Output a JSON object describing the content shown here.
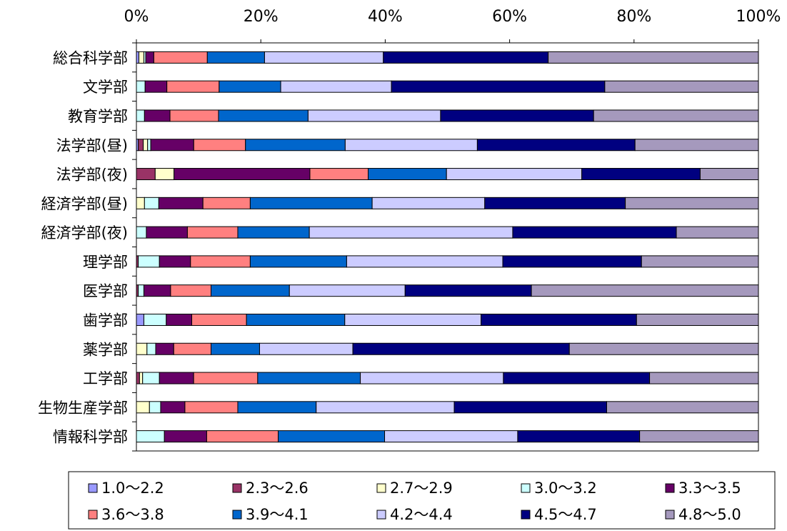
{
  "chart_data": {
    "type": "bar",
    "orientation": "horizontal",
    "stacked": "percent",
    "title": "",
    "xlabel": "",
    "ylabel": "",
    "xlim": [
      0,
      100
    ],
    "x_ticks": [
      "0%",
      "20%",
      "40%",
      "60%",
      "80%",
      "100%"
    ],
    "x_axis_position": "top",
    "grid": false,
    "legend_position": "bottom",
    "categories": [
      "総合科学部",
      "文学部",
      "教育学部",
      "法学部(昼)",
      "法学部(夜)",
      "経済学部(昼)",
      "経済学部(夜)",
      "理学部",
      "医学部",
      "歯学部",
      "薬学部",
      "工学部",
      "生物生産学部",
      "情報科学部"
    ],
    "series": [
      {
        "name": "1.0〜2.2",
        "color": "#9999ff",
        "values": [
          0.4,
          0,
          0,
          0.3,
          0,
          0,
          0,
          0,
          0,
          1.2,
          0,
          0,
          0,
          0
        ]
      },
      {
        "name": "2.3〜2.6",
        "color": "#993366",
        "values": [
          0,
          0,
          0,
          0.8,
          3.0,
          0,
          0,
          0.3,
          0.3,
          0,
          0,
          0.5,
          0,
          0
        ]
      },
      {
        "name": "2.7〜2.9",
        "color": "#ffffcc",
        "values": [
          0.8,
          0,
          0,
          0.7,
          3.0,
          1.3,
          0,
          0,
          0,
          0,
          1.7,
          0.5,
          2.1,
          0
        ]
      },
      {
        "name": "3.0〜3.2",
        "color": "#ccffff",
        "values": [
          0.3,
          1.4,
          1.3,
          0.5,
          0,
          2.3,
          1.6,
          3.4,
          0.9,
          3.6,
          1.4,
          2.7,
          1.8,
          4.5
        ]
      },
      {
        "name": "3.3〜3.5",
        "color": "#660066",
        "values": [
          1.3,
          3.5,
          4.1,
          6.9,
          21.7,
          7.1,
          6.6,
          5.0,
          4.3,
          4.1,
          2.9,
          5.5,
          3.9,
          6.8
        ]
      },
      {
        "name": "3.6〜3.8",
        "color": "#ff8080",
        "values": [
          8.6,
          8.4,
          7.8,
          8.3,
          9.3,
          7.6,
          8.1,
          9.6,
          6.5,
          8.8,
          6.0,
          10.3,
          8.5,
          11.5
        ]
      },
      {
        "name": "3.9〜4.1",
        "color": "#0066cc",
        "values": [
          9.2,
          9.9,
          14.4,
          16.0,
          12.5,
          19.6,
          11.5,
          15.5,
          12.6,
          15.8,
          7.8,
          16.5,
          12.6,
          17.1
        ]
      },
      {
        "name": "4.2〜4.4",
        "color": "#ccccff",
        "values": [
          19.1,
          17.8,
          21.3,
          21.2,
          21.6,
          18.1,
          32.7,
          25.1,
          18.6,
          21.9,
          15.0,
          23.0,
          22.2,
          21.4
        ]
      },
      {
        "name": "4.5〜4.7",
        "color": "#000080",
        "values": [
          26.5,
          34.3,
          24.6,
          25.3,
          18.9,
          22.6,
          26.3,
          22.3,
          20.3,
          25.0,
          34.8,
          23.5,
          24.5,
          19.6
        ]
      },
      {
        "name": "4.8〜5.0",
        "color": "#a599bd",
        "values": [
          33.8,
          24.7,
          26.5,
          19.8,
          9.3,
          21.4,
          13.2,
          18.8,
          36.5,
          19.6,
          30.4,
          17.5,
          24.4,
          19.1
        ]
      }
    ]
  }
}
